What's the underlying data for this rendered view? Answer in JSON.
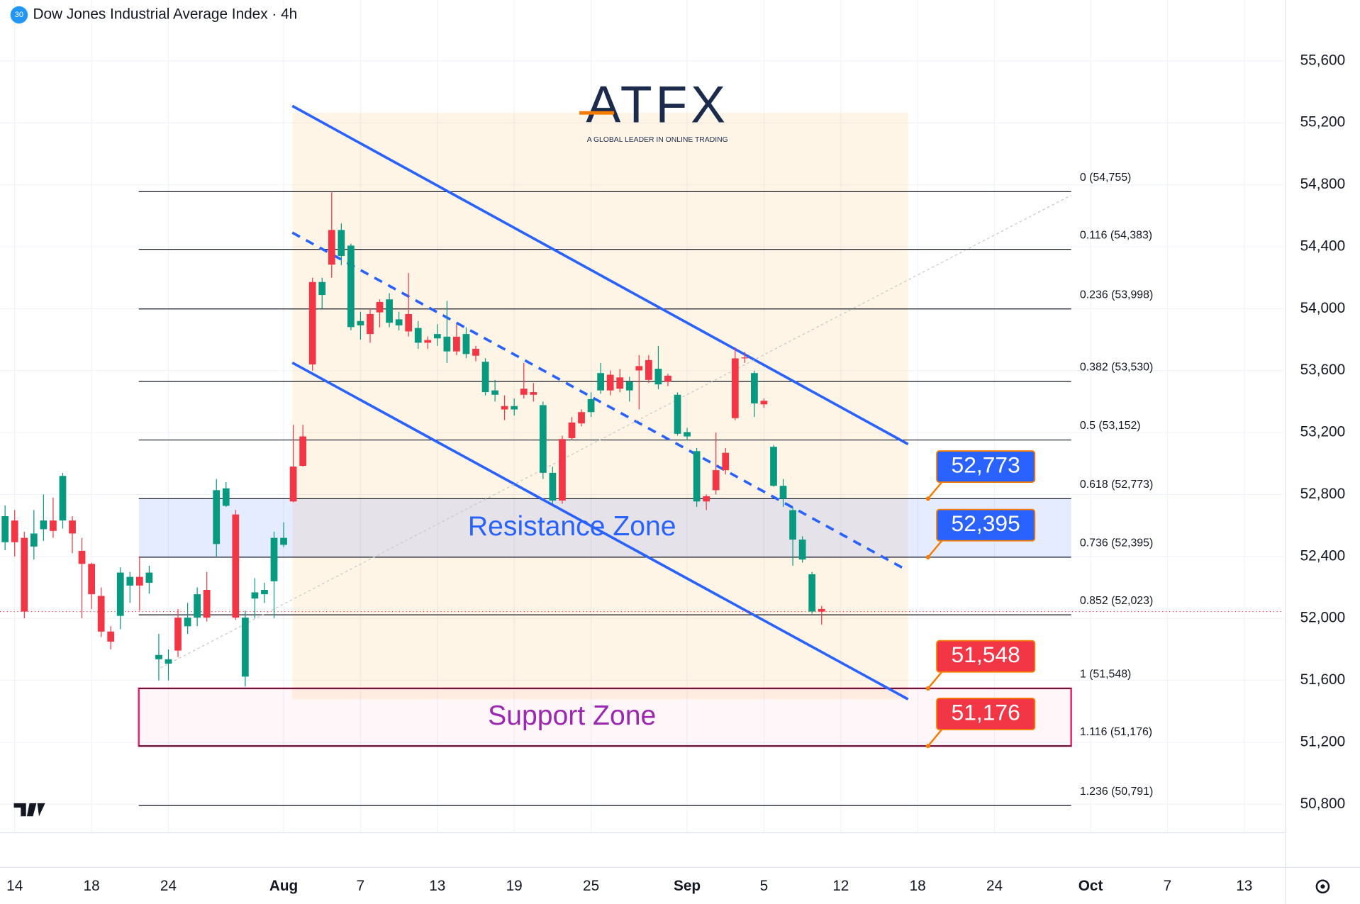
{
  "chart_data": {
    "type": "candlestick",
    "title": "Dow Jones Industrial Average Index · 4h",
    "badge": "30",
    "logo": {
      "name": "ATFX",
      "tagline": "A GLOBAL LEADER IN ONLINE TRADING"
    },
    "up_color": "#089981",
    "down_color": "#f23645",
    "x": [
      -1,
      0,
      1,
      2,
      3,
      4,
      5,
      6,
      7,
      8,
      9,
      10,
      11,
      12,
      13,
      14,
      15,
      16,
      17,
      18,
      19,
      20,
      21,
      22,
      23,
      24,
      25,
      26,
      27,
      28,
      29,
      30,
      31,
      32,
      33,
      34,
      35,
      36,
      37,
      38,
      39,
      40,
      41,
      42,
      43,
      44,
      45,
      46,
      47,
      48,
      49,
      50,
      51,
      52,
      53,
      54,
      55,
      56,
      57,
      58,
      59,
      60,
      61,
      62,
      63,
      64,
      65,
      66,
      67,
      68,
      69,
      70,
      71,
      72,
      73,
      74,
      75,
      76,
      77,
      78,
      79,
      80,
      81,
      82,
      83,
      84
    ],
    "open": [
      52492,
      52632,
      52520,
      52464,
      52576,
      52632,
      52632,
      52632,
      52436,
      52352,
      52145,
      51915,
      52016,
      52212,
      52268,
      52230,
      51736,
      51708,
      52005,
      51949,
      52005,
      52184,
      52480,
      52727,
      52671,
      51624,
      52128,
      52156,
      52240,
      52475,
      52980,
      53175,
      54172,
      54088,
      54508,
      54340,
      53881,
      53892,
      53965,
      54043,
      53909,
      53892,
      53965,
      53780,
      53797,
      53808,
      53724,
      53819,
      53707,
      53741,
      53461,
      53444,
      53371,
      53349,
      53483,
      53461,
      52940,
      52761,
      53158,
      53265,
      53332,
      53332,
      53472,
      53573,
      53556,
      53472,
      53629,
      53668,
      53511,
      53567,
      53192,
      53175,
      52755,
      52789,
      52957,
      53069,
      53679,
      53685,
      53388,
      53405,
      52856,
      52772,
      52509,
      52380,
      52044,
      52061
    ],
    "high": [
      52730,
      52700,
      52560,
      52700,
      52800,
      52780,
      52940,
      52660,
      52520,
      52360,
      52200,
      51950,
      52330,
      52300,
      52400,
      52340,
      51900,
      51800,
      52060,
      52100,
      52200,
      52300,
      52900,
      52880,
      52700,
      52050,
      52260,
      52230,
      52560,
      52620,
      53250,
      53250,
      54200,
      54200,
      54755,
      54550,
      54420,
      53980,
      54000,
      54060,
      54100,
      53980,
      54230,
      53920,
      53820,
      53900,
      54050,
      53900,
      53880,
      53760,
      53680,
      53540,
      53440,
      53420,
      53650,
      53520,
      53400,
      52980,
      53180,
      53300,
      53350,
      53460,
      53650,
      53600,
      53610,
      53560,
      53700,
      53700,
      53760,
      53580,
      53460,
      53230,
      53100,
      52800,
      53200,
      53100,
      53750,
      53720,
      53600,
      53420,
      53120,
      52900,
      52720,
      52530,
      52300,
      52080
    ],
    "low": [
      52440,
      52400,
      52000,
      52380,
      52500,
      52520,
      52580,
      52420,
      52000,
      52060,
      51880,
      51800,
      51930,
      52100,
      52050,
      52160,
      51600,
      51600,
      51750,
      51900,
      51950,
      51980,
      52400,
      52720,
      51990,
      51560,
      52000,
      52100,
      52000,
      52460,
      52750,
      52980,
      53600,
      54000,
      54200,
      54280,
      53860,
      53800,
      53780,
      53880,
      53880,
      53860,
      53820,
      53740,
      53740,
      53760,
      53650,
      53700,
      53680,
      53660,
      53440,
      53400,
      53280,
      53310,
      53420,
      53400,
      52900,
      52740,
      52740,
      53150,
      53240,
      53300,
      53450,
      53440,
      53460,
      53400,
      53350,
      53520,
      53480,
      53500,
      53180,
      53150,
      52720,
      52700,
      52800,
      52930,
      53280,
      53650,
      53300,
      53360,
      52850,
      52720,
      52340,
      52360,
      52030,
      51960
    ],
    "close": [
      52660,
      52492,
      52044,
      52548,
      52632,
      52565,
      52920,
      52548,
      52352,
      52156,
      51915,
      51850,
      52296,
      52268,
      52212,
      52296,
      51764,
      51736,
      51792,
      52005,
      52156,
      52005,
      52828,
      52840,
      52005,
      52005,
      52168,
      52184,
      52520,
      52520,
      52755,
      52985,
      53640,
      54172,
      54284,
      54508,
      54407,
      53920,
      53836,
      53976,
      54060,
      53931,
      53853,
      53875,
      53780,
      53836,
      53819,
      53724,
      53836,
      53696,
      53657,
      53472,
      53349,
      53371,
      53444,
      53444,
      53377,
      52940,
      52761,
      53164,
      53259,
      53416,
      53584,
      53472,
      53483,
      53528,
      53601,
      53540,
      53612,
      53528,
      53444,
      53203,
      53080,
      52755,
      52828,
      52957,
      53293,
      53679,
      53584,
      53382,
      53108,
      52856,
      52699,
      52509,
      52285,
      52044
    ],
    "xlim": [
      -1.53,
      132.1
    ],
    "ylim": [
      50616,
      55992
    ],
    "grid": true,
    "xticks": [
      {
        "value": 0,
        "label": "14"
      },
      {
        "value": 8,
        "label": "18"
      },
      {
        "value": 16,
        "label": "24"
      },
      {
        "value": 28,
        "label": "Aug"
      },
      {
        "value": 36,
        "label": "7"
      },
      {
        "value": 44,
        "label": "13"
      },
      {
        "value": 52,
        "label": "19"
      },
      {
        "value": 60,
        "label": "25"
      },
      {
        "value": 70,
        "label": "Sep"
      },
      {
        "value": 78,
        "label": "5"
      },
      {
        "value": 86,
        "label": "12"
      },
      {
        "value": 94,
        "label": "18"
      },
      {
        "value": 102,
        "label": "24"
      },
      {
        "value": 112,
        "label": "Oct"
      },
      {
        "value": 120,
        "label": "7"
      },
      {
        "value": 128,
        "label": "13"
      }
    ],
    "yticks": [
      {
        "value": 50800,
        "label": "50,800"
      },
      {
        "value": 51200,
        "label": "51,200"
      },
      {
        "value": 51600,
        "label": "51,600"
      },
      {
        "value": 52000,
        "label": "52,000"
      },
      {
        "value": 52400,
        "label": "52,400"
      },
      {
        "value": 52800,
        "label": "52,800"
      },
      {
        "value": 53200,
        "label": "53,200"
      },
      {
        "value": 53600,
        "label": "53,600"
      },
      {
        "value": 54000,
        "label": "54,000"
      },
      {
        "value": 54400,
        "label": "54,400"
      },
      {
        "value": 54800,
        "label": "54,800"
      },
      {
        "value": 55200,
        "label": "55,200"
      },
      {
        "value": 55600,
        "label": "55,600"
      }
    ],
    "fib_levels": [
      {
        "value": 54755,
        "label": "0 (54,755)"
      },
      {
        "value": 54383,
        "label": "0.116 (54,383)"
      },
      {
        "value": 53998,
        "label": "0.236 (53,998)"
      },
      {
        "value": 53530,
        "label": "0.382 (53,530)"
      },
      {
        "value": 53152,
        "label": "0.5 (53,152)"
      },
      {
        "value": 52773,
        "label": "0.618 (52,773)"
      },
      {
        "value": 52395,
        "label": "0.736 (52,395)"
      },
      {
        "value": 52023,
        "label": "0.852 (52,023)"
      },
      {
        "value": 51548,
        "label": "1 (51,548)"
      },
      {
        "value": 51176,
        "label": "1.116 (51,176)"
      },
      {
        "value": 50791,
        "label": "1.236 (50,791)"
      }
    ],
    "zones": [
      {
        "label": "Resistance Zone",
        "low": 52395,
        "high": 52773,
        "color": "#2962ff"
      },
      {
        "label": "Support Zone",
        "low": 51176,
        "high": 51548,
        "color": "#9c27b0"
      }
    ],
    "callouts": [
      {
        "value": 52773,
        "label": "52,773",
        "color": "#2962ff"
      },
      {
        "value": 52395,
        "label": "52,395",
        "color": "#2962ff"
      },
      {
        "value": 51548,
        "label": "51,548",
        "color": "#f23645"
      },
      {
        "value": 51176,
        "label": "51,176",
        "color": "#f23645"
      }
    ],
    "channel": {
      "x": [
        28.9,
        93
      ],
      "upper": [
        55309,
        53125
      ],
      "middle": [
        54491,
        52307
      ],
      "lower": [
        53651,
        51478
      ]
    }
  }
}
